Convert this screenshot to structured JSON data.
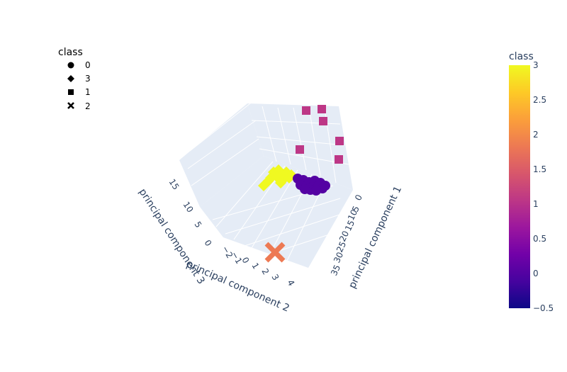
{
  "chart_data": {
    "type": "scatter",
    "scene": "3d",
    "legend": {
      "title": "class",
      "placement": "top-left",
      "entries": [
        {
          "label": "0",
          "symbol": "circle"
        },
        {
          "label": "3",
          "symbol": "diamond"
        },
        {
          "label": "1",
          "symbol": "square"
        },
        {
          "label": "2",
          "symbol": "x"
        }
      ]
    },
    "colorbar": {
      "title": "class",
      "range": [
        -0.5,
        3
      ],
      "ticks": [
        "3",
        "2.5",
        "2",
        "1.5",
        "1",
        "0.5",
        "0",
        "−0.5"
      ],
      "colorscale": [
        "#0d0887",
        "#46039f",
        "#7201a8",
        "#9c179e",
        "#bd3786",
        "#d8576b",
        "#ed7953",
        "#fb9f3a",
        "#fdca26",
        "#f0f921"
      ]
    },
    "axes": {
      "x": {
        "title": "principal component 1",
        "ticks": [
          "0",
          "5",
          "10",
          "15",
          "20",
          "25",
          "30",
          "35"
        ]
      },
      "y": {
        "title": "principal component 2",
        "ticks": [
          "−2",
          "−1",
          "0",
          "1",
          "2",
          "3",
          "4"
        ]
      },
      "z": {
        "title": "principal component 3",
        "ticks": [
          "0",
          "5",
          "10",
          "15"
        ]
      }
    },
    "series": [
      {
        "name": "0",
        "symbol": "circle",
        "color": "#5402a3"
      },
      {
        "name": "3",
        "symbol": "diamond",
        "color": "#f0f921"
      },
      {
        "name": "1",
        "symbol": "square",
        "color": "#bd3786"
      },
      {
        "name": "2",
        "symbol": "x",
        "color": "#ed7953"
      }
    ]
  }
}
